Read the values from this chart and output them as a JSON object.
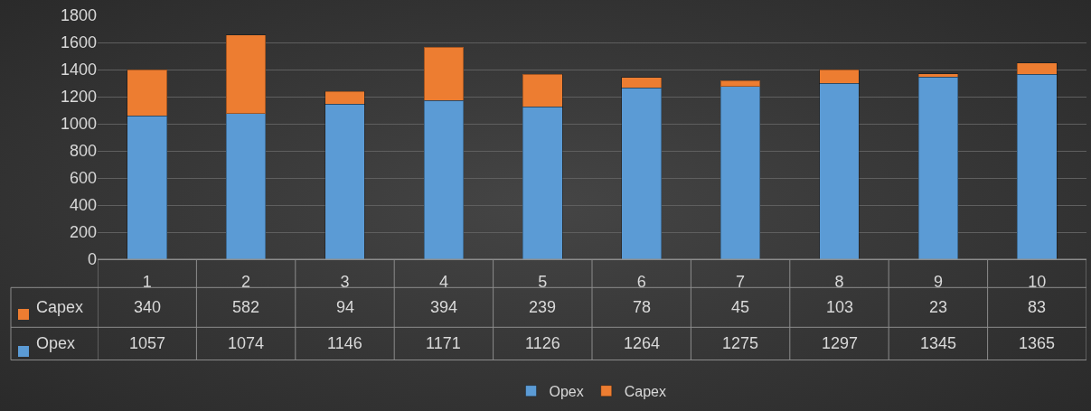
{
  "chart_data": {
    "type": "bar",
    "stacked": true,
    "categories": [
      "1",
      "2",
      "3",
      "4",
      "5",
      "6",
      "7",
      "8",
      "9",
      "10"
    ],
    "series": [
      {
        "name": "Opex",
        "color": "#5b9bd5",
        "values": [
          1057,
          1074,
          1146,
          1171,
          1126,
          1264,
          1275,
          1297,
          1345,
          1365
        ]
      },
      {
        "name": "Capex",
        "color": "#ed7d31",
        "values": [
          340,
          582,
          94,
          394,
          239,
          78,
          45,
          103,
          23,
          83
        ]
      }
    ],
    "ylim": [
      0,
      1800
    ],
    "yticks": [
      0,
      200,
      400,
      600,
      800,
      1000,
      1200,
      1400,
      1600,
      1800
    ],
    "grid": "y",
    "legend": "bottom",
    "data_labels": true
  }
}
